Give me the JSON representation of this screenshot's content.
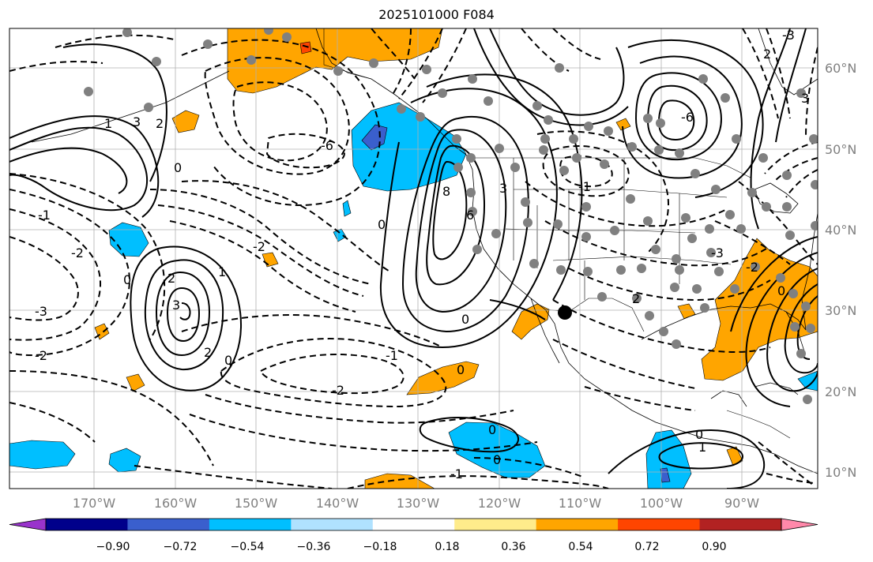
{
  "title": "2025101000 F084",
  "lat_labels": [
    "60°N",
    "50°N",
    "40°N",
    "30°N",
    "20°N",
    "10°N"
  ],
  "lon_labels": [
    "170°W",
    "160°W",
    "150°W",
    "140°W",
    "130°W",
    "120°W",
    "110°W",
    "100°W",
    "90°W"
  ],
  "colorbar": {
    "ticks": [
      "−0.90",
      "−0.72",
      "−0.54",
      "−0.36",
      "−0.18",
      "0.18",
      "0.36",
      "0.54",
      "0.72",
      "0.90"
    ],
    "colors": [
      "#9933cc",
      "#00008b",
      "#3a5fcd",
      "#00bfff",
      "#b0e2ff",
      "#ffffff",
      "#ffec8b",
      "#ffa500",
      "#ff4500",
      "#b22222",
      "#ff88aa"
    ]
  },
  "contour_labels": [
    {
      "text": "3"
    },
    {
      "text": "2"
    },
    {
      "text": "0"
    },
    {
      "text": "1"
    },
    {
      "text": "-1"
    },
    {
      "text": "-2"
    },
    {
      "text": "-3"
    },
    {
      "text": "-2"
    },
    {
      "text": "0"
    },
    {
      "text": "2"
    },
    {
      "text": "3"
    },
    {
      "text": "1"
    },
    {
      "text": "2"
    },
    {
      "text": "0"
    },
    {
      "text": "-6"
    },
    {
      "text": "-2"
    },
    {
      "text": "-2"
    },
    {
      "text": "-1"
    },
    {
      "text": "0"
    },
    {
      "text": "8"
    },
    {
      "text": "6"
    },
    {
      "text": "3"
    },
    {
      "text": "0"
    },
    {
      "text": "-1"
    },
    {
      "text": "-6"
    },
    {
      "text": "2"
    },
    {
      "text": "-3"
    },
    {
      "text": "-2"
    },
    {
      "text": "0"
    },
    {
      "text": "0"
    },
    {
      "text": "0"
    },
    {
      "text": "0"
    },
    {
      "text": "-1"
    },
    {
      "text": "1"
    },
    {
      "text": "0"
    },
    {
      "text": "3"
    },
    {
      "text": "-3"
    },
    {
      "text": "2"
    }
  ]
}
